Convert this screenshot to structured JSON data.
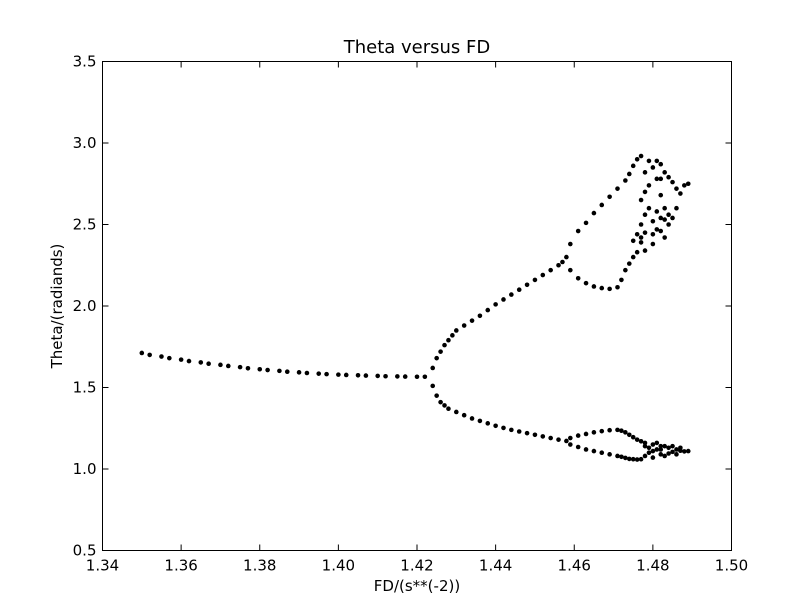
{
  "chart_data": {
    "type": "scatter",
    "title": "Theta versus FD",
    "xlabel": "FD/(s**(-2))",
    "ylabel": "Theta/(radiands)",
    "xlim": [
      1.34,
      1.5
    ],
    "ylim": [
      0.5,
      3.5
    ],
    "xticks": [
      "1.34",
      "1.36",
      "1.38",
      "1.40",
      "1.42",
      "1.44",
      "1.46",
      "1.48",
      "1.50"
    ],
    "yticks": [
      "0.5",
      "1.0",
      "1.5",
      "2.0",
      "2.5",
      "3.0",
      "3.5"
    ],
    "grid": false,
    "marker_color": "#000000",
    "series": [
      {
        "points": [
          [
            1.35,
            1.712
          ],
          [
            1.352,
            1.7
          ],
          [
            1.355,
            1.69
          ],
          [
            1.357,
            1.68
          ],
          [
            1.36,
            1.671
          ],
          [
            1.362,
            1.662
          ],
          [
            1.365,
            1.654
          ],
          [
            1.367,
            1.646
          ],
          [
            1.37,
            1.639
          ],
          [
            1.372,
            1.632
          ],
          [
            1.375,
            1.625
          ],
          [
            1.377,
            1.618
          ],
          [
            1.38,
            1.612
          ],
          [
            1.382,
            1.607
          ],
          [
            1.385,
            1.602
          ],
          [
            1.387,
            1.597
          ],
          [
            1.39,
            1.593
          ],
          [
            1.392,
            1.589
          ],
          [
            1.395,
            1.585
          ],
          [
            1.397,
            1.582
          ],
          [
            1.4,
            1.579
          ],
          [
            1.402,
            1.577
          ],
          [
            1.405,
            1.575
          ],
          [
            1.407,
            1.573
          ],
          [
            1.41,
            1.571
          ],
          [
            1.412,
            1.569
          ],
          [
            1.415,
            1.568
          ],
          [
            1.417,
            1.567
          ],
          [
            1.42,
            1.566
          ],
          [
            1.422,
            1.566
          ],
          [
            1.424,
            1.62
          ],
          [
            1.425,
            1.68
          ],
          [
            1.426,
            1.72
          ],
          [
            1.427,
            1.76
          ],
          [
            1.428,
            1.79
          ],
          [
            1.429,
            1.82
          ],
          [
            1.43,
            1.85
          ],
          [
            1.432,
            1.88
          ],
          [
            1.434,
            1.91
          ],
          [
            1.436,
            1.94
          ],
          [
            1.438,
            1.975
          ],
          [
            1.44,
            2.01
          ],
          [
            1.442,
            2.04
          ],
          [
            1.444,
            2.07
          ],
          [
            1.446,
            2.1
          ],
          [
            1.448,
            2.13
          ],
          [
            1.45,
            2.16
          ],
          [
            1.452,
            2.19
          ],
          [
            1.454,
            2.22
          ],
          [
            1.456,
            2.25
          ],
          [
            1.457,
            2.27
          ],
          [
            1.458,
            2.3
          ],
          [
            1.459,
            2.38
          ],
          [
            1.461,
            2.46
          ],
          [
            1.463,
            2.51
          ],
          [
            1.465,
            2.57
          ],
          [
            1.467,
            2.62
          ],
          [
            1.469,
            2.67
          ],
          [
            1.471,
            2.72
          ],
          [
            1.473,
            2.77
          ],
          [
            1.474,
            2.81
          ],
          [
            1.475,
            2.86
          ],
          [
            1.476,
            2.9
          ],
          [
            1.477,
            2.92
          ],
          [
            1.459,
            2.22
          ],
          [
            1.461,
            2.17
          ],
          [
            1.463,
            2.14
          ],
          [
            1.465,
            2.12
          ],
          [
            1.467,
            2.11
          ],
          [
            1.469,
            2.105
          ],
          [
            1.471,
            2.115
          ],
          [
            1.472,
            2.16
          ],
          [
            1.473,
            2.22
          ],
          [
            1.474,
            2.26
          ],
          [
            1.475,
            2.3
          ],
          [
            1.476,
            2.33
          ],
          [
            1.475,
            2.4
          ],
          [
            1.476,
            2.44
          ],
          [
            1.477,
            2.39
          ],
          [
            1.478,
            2.45
          ],
          [
            1.477,
            2.5
          ],
          [
            1.478,
            2.56
          ],
          [
            1.477,
            2.65
          ],
          [
            1.478,
            2.7
          ],
          [
            1.479,
            2.6
          ],
          [
            1.48,
            2.52
          ],
          [
            1.481,
            2.47
          ],
          [
            1.48,
            2.44
          ],
          [
            1.482,
            2.54
          ],
          [
            1.483,
            2.6
          ],
          [
            1.484,
            2.56
          ],
          [
            1.482,
            2.68
          ],
          [
            1.481,
            2.78
          ],
          [
            1.48,
            2.85
          ],
          [
            1.479,
            2.89
          ],
          [
            1.481,
            2.89
          ],
          [
            1.482,
            2.87
          ],
          [
            1.483,
            2.82
          ],
          [
            1.484,
            2.79
          ],
          [
            1.485,
            2.76
          ],
          [
            1.486,
            2.72
          ],
          [
            1.487,
            2.69
          ],
          [
            1.488,
            2.74
          ],
          [
            1.489,
            2.75
          ],
          [
            1.486,
            2.6
          ],
          [
            1.485,
            2.54
          ],
          [
            1.484,
            2.5
          ],
          [
            1.482,
            2.46
          ],
          [
            1.48,
            2.38
          ],
          [
            1.478,
            2.34
          ],
          [
            1.477,
            2.42
          ],
          [
            1.483,
            2.42
          ],
          [
            1.483,
            2.53
          ],
          [
            1.481,
            2.58
          ],
          [
            1.479,
            2.74
          ],
          [
            1.478,
            2.82
          ],
          [
            1.482,
            2.78
          ],
          [
            1.424,
            1.51
          ],
          [
            1.425,
            1.45
          ],
          [
            1.426,
            1.41
          ],
          [
            1.427,
            1.39
          ],
          [
            1.428,
            1.37
          ],
          [
            1.43,
            1.35
          ],
          [
            1.432,
            1.33
          ],
          [
            1.434,
            1.31
          ],
          [
            1.436,
            1.295
          ],
          [
            1.438,
            1.28
          ],
          [
            1.44,
            1.265
          ],
          [
            1.442,
            1.252
          ],
          [
            1.444,
            1.24
          ],
          [
            1.446,
            1.23
          ],
          [
            1.448,
            1.22
          ],
          [
            1.45,
            1.21
          ],
          [
            1.452,
            1.2
          ],
          [
            1.454,
            1.19
          ],
          [
            1.456,
            1.18
          ],
          [
            1.458,
            1.172
          ],
          [
            1.459,
            1.19
          ],
          [
            1.461,
            1.205
          ],
          [
            1.463,
            1.215
          ],
          [
            1.465,
            1.225
          ],
          [
            1.467,
            1.232
          ],
          [
            1.469,
            1.238
          ],
          [
            1.471,
            1.24
          ],
          [
            1.472,
            1.235
          ],
          [
            1.473,
            1.225
          ],
          [
            1.474,
            1.21
          ],
          [
            1.475,
            1.195
          ],
          [
            1.476,
            1.18
          ],
          [
            1.459,
            1.15
          ],
          [
            1.461,
            1.135
          ],
          [
            1.463,
            1.12
          ],
          [
            1.465,
            1.11
          ],
          [
            1.467,
            1.1
          ],
          [
            1.469,
            1.09
          ],
          [
            1.471,
            1.08
          ],
          [
            1.472,
            1.075
          ],
          [
            1.473,
            1.068
          ],
          [
            1.474,
            1.062
          ],
          [
            1.475,
            1.06
          ],
          [
            1.476,
            1.058
          ],
          [
            1.477,
            1.17
          ],
          [
            1.478,
            1.14
          ],
          [
            1.479,
            1.1
          ],
          [
            1.48,
            1.15
          ],
          [
            1.481,
            1.12
          ],
          [
            1.482,
            1.09
          ],
          [
            1.483,
            1.14
          ],
          [
            1.484,
            1.13
          ],
          [
            1.485,
            1.105
          ],
          [
            1.486,
            1.12
          ],
          [
            1.487,
            1.112
          ],
          [
            1.488,
            1.108
          ],
          [
            1.489,
            1.11
          ],
          [
            1.477,
            1.06
          ],
          [
            1.478,
            1.08
          ],
          [
            1.479,
            1.13
          ],
          [
            1.48,
            1.07
          ],
          [
            1.481,
            1.16
          ],
          [
            1.482,
            1.14
          ],
          [
            1.483,
            1.08
          ],
          [
            1.484,
            1.095
          ],
          [
            1.485,
            1.14
          ],
          [
            1.486,
            1.09
          ],
          [
            1.487,
            1.13
          ],
          [
            1.48,
            1.11
          ],
          [
            1.478,
            1.16
          ],
          [
            1.482,
            1.12
          ]
        ]
      }
    ]
  }
}
